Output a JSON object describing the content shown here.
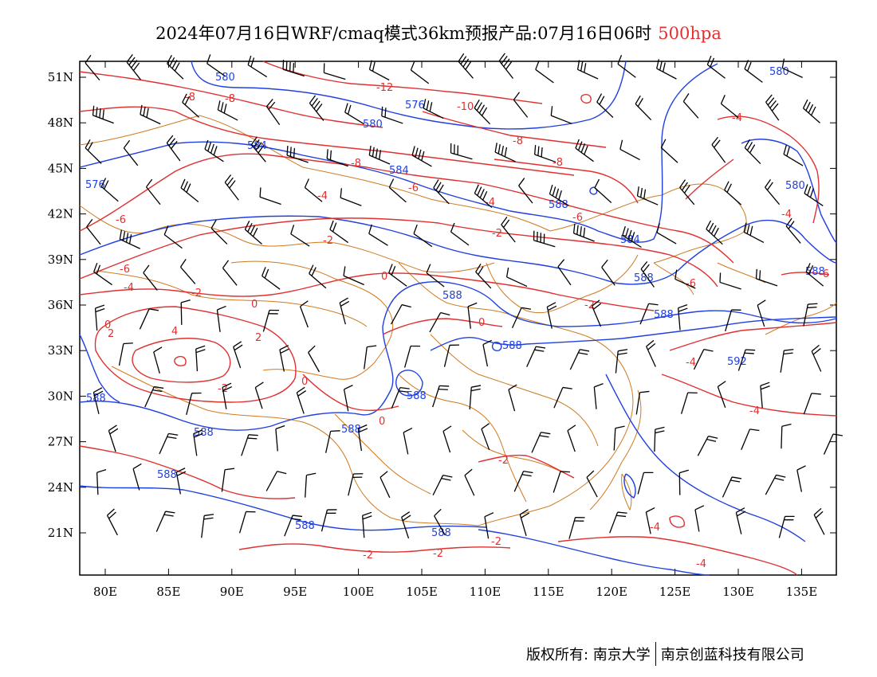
{
  "title": {
    "main": "2024年07月16日WRF/cmaq模式36km预报产品:07月16日06时",
    "level": "500hpa"
  },
  "colors": {
    "height": "#2040e0",
    "temperature": "#e03030",
    "border": "#d07a20",
    "wind": "#000000",
    "level_text": "#e03030"
  },
  "axes": {
    "lat_labels": [
      "51N",
      "48N",
      "45N",
      "42N",
      "39N",
      "36N",
      "33N",
      "30N",
      "27N",
      "24N",
      "21N"
    ],
    "lon_labels": [
      "80E",
      "85E",
      "90E",
      "95E",
      "100E",
      "105E",
      "110E",
      "115E",
      "120E",
      "125E",
      "130E",
      "135E"
    ]
  },
  "contour_labels": {
    "height": [
      "580",
      "576",
      "584",
      "580",
      "584",
      "588",
      "576",
      "580",
      "580",
      "584",
      "588",
      "588",
      "588",
      "588",
      "588",
      "588",
      "592",
      "588",
      "588",
      "588",
      "588",
      "588",
      "588"
    ],
    "temperature": [
      "-8",
      "-8",
      "-12",
      "-10",
      "-8",
      "-8",
      "-8",
      "-6",
      "-6",
      "-4",
      "-4",
      "-6",
      "-4",
      "-2",
      "-6",
      "-4",
      "-2",
      "0",
      "-2",
      "0",
      "2",
      "0",
      "4",
      "2",
      "-2",
      "0",
      "0",
      "-2",
      "0",
      "-2",
      "-2",
      "-2",
      "-4",
      "-4",
      "-4",
      "-6",
      "-6",
      "-4",
      "-2",
      "-4"
    ]
  },
  "footer": {
    "copyright": "版权所有: 南京大学",
    "company": "南京创蓝科技有限公司"
  }
}
